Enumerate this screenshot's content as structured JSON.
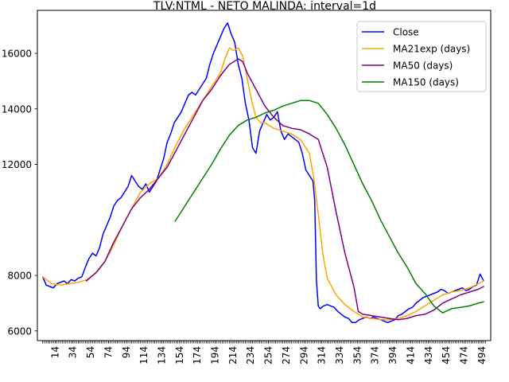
{
  "chart_data": {
    "type": "line",
    "title": "TLV:NTML - NETO MALINDA: interval=1d",
    "xlabel": "",
    "ylabel": "",
    "xlim": [
      -6,
      504
    ],
    "ylim": [
      5650,
      17550
    ],
    "x_ticks": [
      14,
      34,
      54,
      74,
      94,
      114,
      134,
      154,
      174,
      194,
      214,
      234,
      254,
      274,
      294,
      314,
      334,
      354,
      374,
      394,
      414,
      434,
      454,
      474,
      494
    ],
    "x_tick_labels": [
      "14",
      "34",
      "54",
      "74",
      "94",
      "114",
      "134",
      "154",
      "174",
      "194",
      "214",
      "234",
      "254",
      "274",
      "294",
      "314",
      "334",
      "354",
      "374",
      "394",
      "414",
      "434",
      "454",
      "474",
      "494"
    ],
    "minor_x_tick_step": 2,
    "y_ticks": [
      6000,
      8000,
      12000,
      14000,
      16000
    ],
    "y_tick_labels": [
      "6000",
      "8000",
      "12000",
      "14000",
      "16000"
    ],
    "legend_position": "upper right",
    "grid": false,
    "series": [
      {
        "name": "Close",
        "color": "#0000ff",
        "x": [
          0,
          4,
          8,
          12,
          16,
          20,
          24,
          28,
          32,
          36,
          40,
          44,
          48,
          52,
          56,
          60,
          64,
          68,
          72,
          76,
          80,
          84,
          88,
          92,
          96,
          100,
          104,
          108,
          112,
          116,
          120,
          124,
          128,
          132,
          136,
          140,
          144,
          148,
          152,
          156,
          160,
          164,
          168,
          172,
          176,
          180,
          184,
          188,
          192,
          196,
          200,
          204,
          208,
          212,
          216,
          220,
          224,
          228,
          232,
          236,
          240,
          244,
          248,
          252,
          256,
          260,
          264,
          268,
          272,
          276,
          280,
          284,
          288,
          292,
          296,
          300,
          304,
          306,
          308,
          310,
          312,
          316,
          320,
          324,
          328,
          332,
          336,
          340,
          344,
          348,
          352,
          356,
          360,
          364,
          368,
          372,
          376,
          380,
          384,
          388,
          392,
          396,
          400,
          404,
          408,
          412,
          416,
          420,
          424,
          428,
          432,
          436,
          440,
          444,
          448,
          452,
          456,
          460,
          464,
          468,
          472,
          476,
          480,
          484,
          488,
          492,
          496
        ],
        "values": [
          7950,
          7650,
          7600,
          7550,
          7700,
          7750,
          7800,
          7700,
          7850,
          7800,
          7900,
          7950,
          8300,
          8600,
          8800,
          8700,
          9000,
          9500,
          9800,
          10100,
          10500,
          10700,
          10800,
          11000,
          11200,
          11600,
          11400,
          11200,
          11100,
          11300,
          11000,
          11200,
          11400,
          11800,
          12200,
          12800,
          13100,
          13500,
          13700,
          13900,
          14200,
          14500,
          14600,
          14500,
          14700,
          14900,
          15100,
          15600,
          16000,
          16300,
          16600,
          16900,
          17100,
          16700,
          16400,
          15600,
          15100,
          14200,
          13600,
          12600,
          12400,
          13200,
          13500,
          13800,
          13600,
          13700,
          13900,
          13200,
          12900,
          13100,
          13000,
          12900,
          12800,
          12400,
          11800,
          11600,
          11400,
          10700,
          7800,
          6900,
          6800,
          6900,
          6950,
          6900,
          6850,
          6700,
          6600,
          6500,
          6450,
          6300,
          6300,
          6400,
          6450,
          6500,
          6450,
          6500,
          6450,
          6400,
          6350,
          6300,
          6350,
          6400,
          6550,
          6600,
          6700,
          6800,
          6850,
          7000,
          7100,
          7200,
          7250,
          7300,
          7350,
          7400,
          7500,
          7450,
          7350,
          7400,
          7450,
          7500,
          7550,
          7450,
          7500,
          7600,
          7650,
          8050,
          7800
        ]
      },
      {
        "name": "MA21exp (days)",
        "color": "#ffa500",
        "x": [
          0,
          10,
          20,
          30,
          40,
          50,
          60,
          70,
          80,
          90,
          100,
          110,
          120,
          130,
          140,
          150,
          160,
          170,
          180,
          190,
          200,
          205,
          210,
          215,
          220,
          225,
          230,
          235,
          240,
          245,
          250,
          260,
          270,
          280,
          290,
          300,
          305,
          310,
          315,
          320,
          330,
          340,
          350,
          360,
          370,
          380,
          390,
          400,
          410,
          420,
          430,
          440,
          450,
          460,
          470,
          480,
          490,
          496
        ],
        "values": [
          7950,
          7700,
          7650,
          7700,
          7750,
          7850,
          8100,
          8500,
          9100,
          9800,
          10400,
          11000,
          11300,
          11500,
          12000,
          12700,
          13300,
          13800,
          14300,
          14800,
          15300,
          15800,
          16200,
          16100,
          16200,
          15900,
          15100,
          14300,
          13700,
          13500,
          13500,
          13300,
          13200,
          13100,
          12900,
          12400,
          11500,
          10200,
          8800,
          7900,
          7300,
          6950,
          6700,
          6500,
          6450,
          6400,
          6400,
          6450,
          6550,
          6700,
          6900,
          7100,
          7300,
          7400,
          7450,
          7550,
          7700,
          7800
        ]
      },
      {
        "name": "MA50 (days)",
        "color": "#800080",
        "x": [
          49,
          60,
          70,
          80,
          90,
          100,
          110,
          120,
          130,
          140,
          150,
          160,
          170,
          180,
          190,
          200,
          210,
          220,
          225,
          230,
          240,
          250,
          260,
          270,
          280,
          290,
          300,
          310,
          320,
          330,
          340,
          350,
          355,
          360,
          370,
          380,
          390,
          400,
          410,
          420,
          430,
          440,
          450,
          460,
          470,
          480,
          490,
          496
        ],
        "values": [
          7800,
          8100,
          8500,
          9200,
          9800,
          10400,
          10800,
          11100,
          11500,
          11900,
          12500,
          13100,
          13700,
          14300,
          14700,
          15200,
          15600,
          15800,
          15700,
          15300,
          14700,
          14100,
          13700,
          13400,
          13300,
          13250,
          13100,
          12900,
          11900,
          10300,
          8800,
          7600,
          6700,
          6600,
          6550,
          6500,
          6450,
          6400,
          6450,
          6550,
          6600,
          6750,
          7000,
          7150,
          7300,
          7400,
          7500,
          7600
        ]
      },
      {
        "name": "MA150 (days)",
        "color": "#008000",
        "x": [
          149,
          160,
          170,
          180,
          190,
          200,
          210,
          220,
          230,
          240,
          250,
          260,
          270,
          280,
          290,
          300,
          310,
          320,
          330,
          340,
          350,
          360,
          370,
          380,
          390,
          400,
          410,
          420,
          430,
          440,
          450,
          460,
          470,
          480,
          490,
          496
        ],
        "values": [
          9950,
          10500,
          11000,
          11500,
          12000,
          12550,
          13050,
          13400,
          13600,
          13700,
          13850,
          13950,
          14100,
          14200,
          14300,
          14300,
          14200,
          13800,
          13300,
          12700,
          12000,
          11300,
          10700,
          10000,
          9400,
          8800,
          8300,
          7700,
          7350,
          6900,
          6650,
          6800,
          6850,
          6900,
          7000,
          7050
        ]
      }
    ]
  }
}
